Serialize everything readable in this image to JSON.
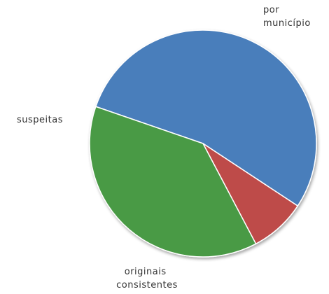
{
  "chart_data": {
    "type": "pie",
    "categories": [
      "por município",
      "suspeitas",
      "originais consistentes"
    ],
    "values": [
      54,
      8,
      38
    ],
    "colors": [
      "#4a7ebb",
      "#be4b48",
      "#4a9a45"
    ],
    "labels": [
      {
        "lines": [
          "por",
          "município"
        ]
      },
      {
        "lines": [
          "suspeitas"
        ]
      },
      {
        "lines": [
          "originais",
          "consistentes"
        ]
      }
    ]
  }
}
